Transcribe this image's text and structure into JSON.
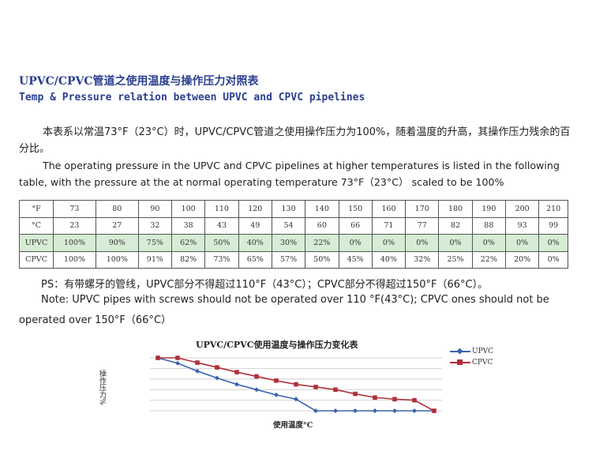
{
  "header": {
    "title_cn": "UPVC/CPVC管道之使用温度与操作压力对照表",
    "title_en": "Temp & Pressure relation between UPVC and CPVC pipelines"
  },
  "intro": {
    "cn": "本表系以常温73°F（23°C）时，UPVC/CPVC管道之使用操作压力为100%，随着温度的升高，其操作压力残余的百分比。",
    "en": "The operating pressure  in the UPVC and CPVC pipelines at higher temperatures is listed  in the following table, with the pressure at the at normal operating temperature 73°F（23°C）  scaled to be 100%"
  },
  "table": {
    "rows": [
      {
        "label": "°F",
        "cells": [
          "73",
          "80",
          "90",
          "100",
          "110",
          "120",
          "130",
          "140",
          "150",
          "160",
          "170",
          "180",
          "190",
          "200",
          "210"
        ]
      },
      {
        "label": "°C",
        "cells": [
          "23",
          "27",
          "32",
          "38",
          "43",
          "49",
          "54",
          "60",
          "66",
          "71",
          "77",
          "82",
          "88",
          "93",
          "99"
        ]
      },
      {
        "label": "UPVC",
        "cells": [
          "100%",
          "90%",
          "75%",
          "62%",
          "50%",
          "40%",
          "30%",
          "22%",
          "0%",
          "0%",
          "0%",
          "0%",
          "0%",
          "0%",
          "0%"
        ]
      },
      {
        "label": "CPVC",
        "cells": [
          "100%",
          "100%",
          "91%",
          "82%",
          "73%",
          "65%",
          "57%",
          "50%",
          "45%",
          "40%",
          "32%",
          "25%",
          "22%",
          "20%",
          "0%"
        ]
      }
    ]
  },
  "notes": {
    "ps": "PS：有带螺牙的管线，UPVC部分不得超过110°F（43°C）；CPVC部分不得超过150°F（66°C）。",
    "note_line1": "Note: UPVC pipes with screws should not be operated over 110 °F(43°C); CPVC ones should not be",
    "note_line2": "operated over 150°F（66°C）"
  },
  "chart_data": {
    "type": "line",
    "title": "UPVC/CPVC使用温度与操作压力变化表",
    "xlabel": "使用温度°C",
    "ylabel": "操作压力%",
    "x": [
      23,
      27,
      32,
      38,
      43,
      49,
      54,
      60,
      66,
      71,
      77,
      82,
      88,
      93,
      99
    ],
    "series": [
      {
        "name": "UPVC",
        "color": "#3a62b0",
        "marker": "diamond",
        "values": [
          100,
          90,
          75,
          62,
          50,
          40,
          30,
          22,
          0,
          0,
          0,
          0,
          0,
          0,
          0
        ]
      },
      {
        "name": "CPVC",
        "color": "#b0303a",
        "marker": "square",
        "values": [
          100,
          100,
          91,
          82,
          73,
          65,
          57,
          50,
          45,
          40,
          32,
          25,
          22,
          20,
          0
        ]
      }
    ],
    "ylim": [
      0,
      100
    ],
    "grid": true,
    "legend": "top-right"
  }
}
